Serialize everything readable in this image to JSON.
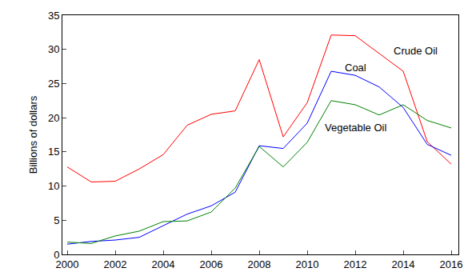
{
  "chart_data": {
    "type": "line",
    "y_label": "Billions of dollars",
    "x": [
      2000,
      2001,
      2002,
      2003,
      2004,
      2005,
      2006,
      2007,
      2008,
      2009,
      2010,
      2011,
      2012,
      2013,
      2014,
      2015,
      2016
    ],
    "xlim": [
      1999.8,
      2016.3
    ],
    "xticks": [
      2000,
      2002,
      2004,
      2006,
      2008,
      2010,
      2012,
      2014,
      2016
    ],
    "ylim": [
      0,
      35
    ],
    "yticks": [
      0,
      5,
      10,
      15,
      20,
      25,
      30,
      35
    ],
    "grid": false,
    "series": [
      {
        "name": "Crude Oil",
        "color": "#ff0000",
        "values": [
          12.8,
          10.6,
          10.7,
          12.5,
          14.6,
          18.9,
          20.5,
          21.0,
          28.5,
          17.2,
          22.2,
          32.1,
          32.0,
          29.4,
          26.8,
          16.5,
          13.2
        ]
      },
      {
        "name": "Coal",
        "color": "#0000ff",
        "values": [
          1.5,
          1.9,
          2.1,
          2.5,
          4.2,
          5.9,
          7.1,
          9.1,
          15.9,
          15.5,
          19.2,
          26.8,
          26.2,
          24.5,
          21.5,
          16.1,
          14.5
        ]
      },
      {
        "name": "Vegetable Oil",
        "color": "#008000",
        "values": [
          1.8,
          1.6,
          2.7,
          3.4,
          4.8,
          4.9,
          6.2,
          9.7,
          15.8,
          12.8,
          16.4,
          22.5,
          21.9,
          20.4,
          21.9,
          19.6,
          18.5
        ]
      }
    ]
  }
}
